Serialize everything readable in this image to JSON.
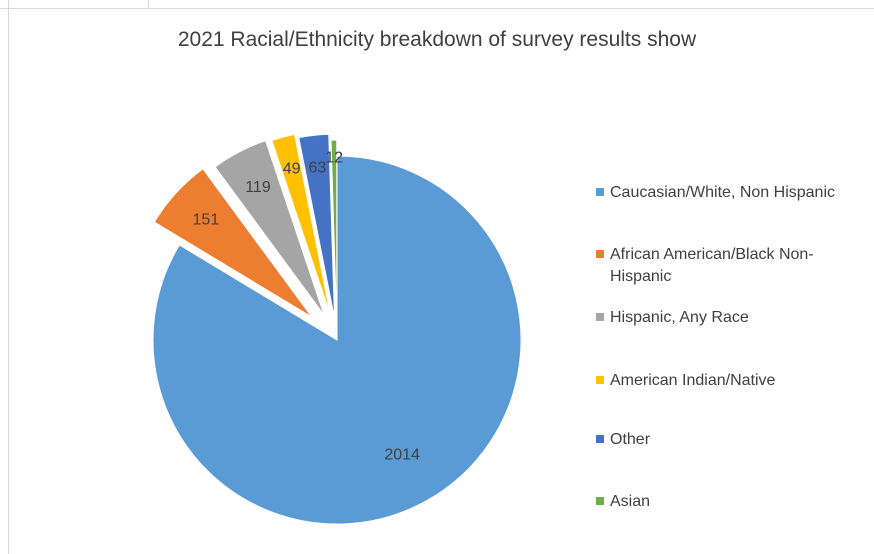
{
  "chart_data": {
    "type": "pie",
    "title": "2021 Racial/Ethnicity breakdown of survey results show",
    "legend_position": "right",
    "exploded": true,
    "slices": [
      {
        "label": "Caucasian/White, Non Hispanic",
        "value": 2014,
        "color": "#5b9bd5"
      },
      {
        "label": "African American/Black Non-Hispanic",
        "value": 151,
        "color": "#ed7d31"
      },
      {
        "label": "Hispanic, Any Race",
        "value": 119,
        "color": "#a5a5a5"
      },
      {
        "label": "American Indian/Native",
        "value": 49,
        "color": "#ffc000"
      },
      {
        "label": "Other",
        "value": 63,
        "color": "#4472c4"
      },
      {
        "label": "Asian",
        "value": 12,
        "color": "#70ad47"
      }
    ]
  }
}
